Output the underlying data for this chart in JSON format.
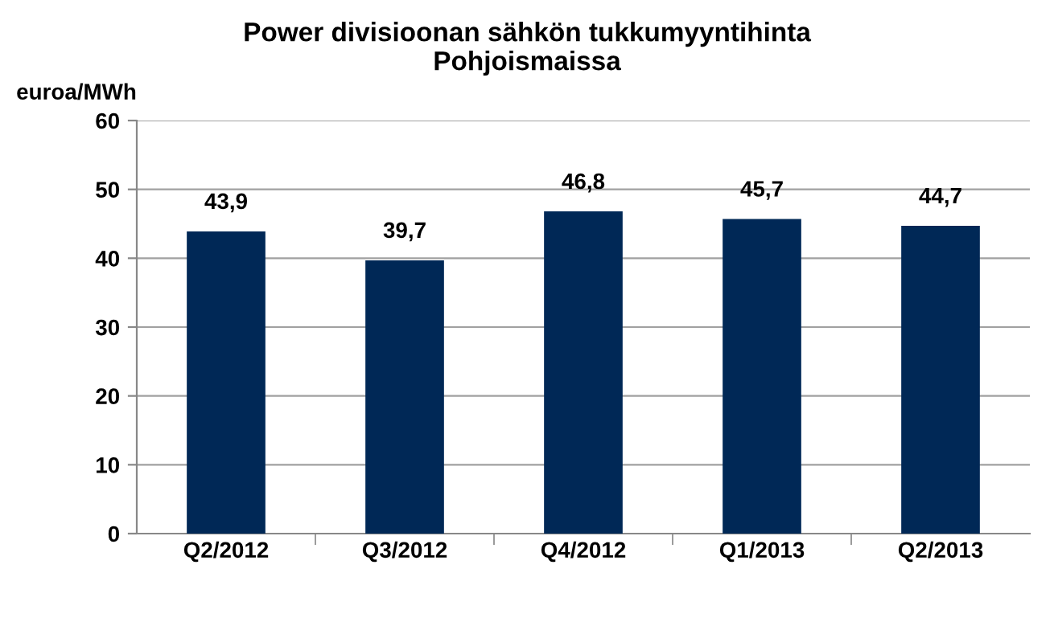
{
  "chart_data": {
    "type": "bar",
    "title": "Power divisioonan sähkön tukkumyyntihinta\nPohjoismaissa",
    "ylabel": "euroa/MWh",
    "categories": [
      "Q2/2012",
      "Q3/2012",
      "Q4/2012",
      "Q1/2013",
      "Q2/2013"
    ],
    "values": [
      43.9,
      39.7,
      46.8,
      45.7,
      44.7
    ],
    "value_labels": [
      "43,9",
      "39,7",
      "46,8",
      "45,7",
      "44,7"
    ],
    "color": "#002856",
    "ylim": [
      0,
      60
    ],
    "yticks": [
      0,
      10,
      20,
      30,
      40,
      50,
      60
    ],
    "grid": "y"
  }
}
